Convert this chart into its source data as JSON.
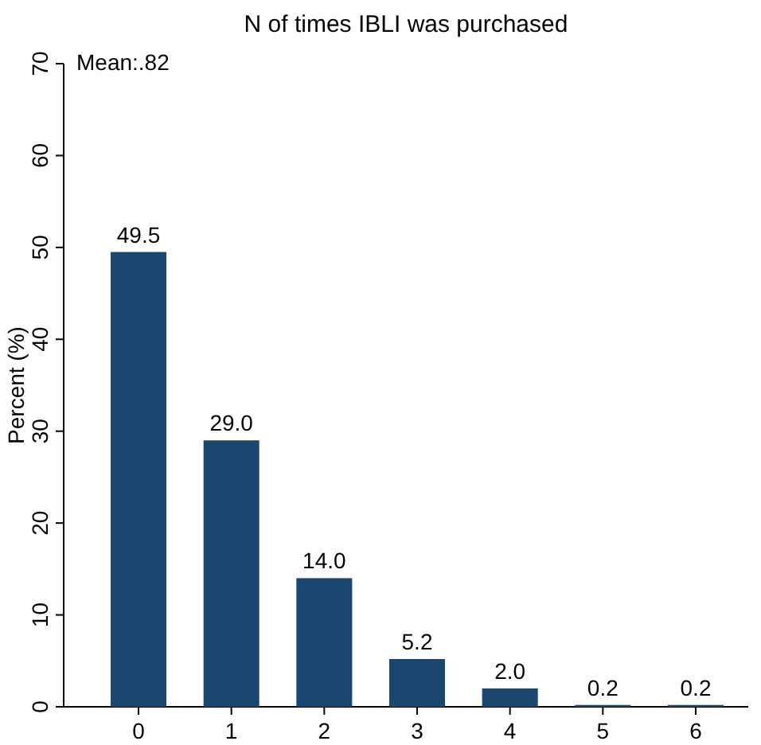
{
  "chart_data": {
    "type": "bar",
    "title": "N of times IBLI was purchased",
    "ylabel": "Percent (%)",
    "categories": [
      "0",
      "1",
      "2",
      "3",
      "4",
      "5",
      "6"
    ],
    "values": [
      49.5,
      29.0,
      14.0,
      5.2,
      2.0,
      0.2,
      0.2
    ],
    "value_labels": [
      "49.5",
      "29.0",
      "14.0",
      "5.2",
      "2.0",
      "0.2",
      "0.2"
    ],
    "color": "#1a476f",
    "ylim": [
      0,
      70
    ],
    "yticks": [
      0,
      10,
      20,
      30,
      40,
      50,
      60,
      70
    ],
    "annotations": [
      "Mean:.82"
    ]
  }
}
